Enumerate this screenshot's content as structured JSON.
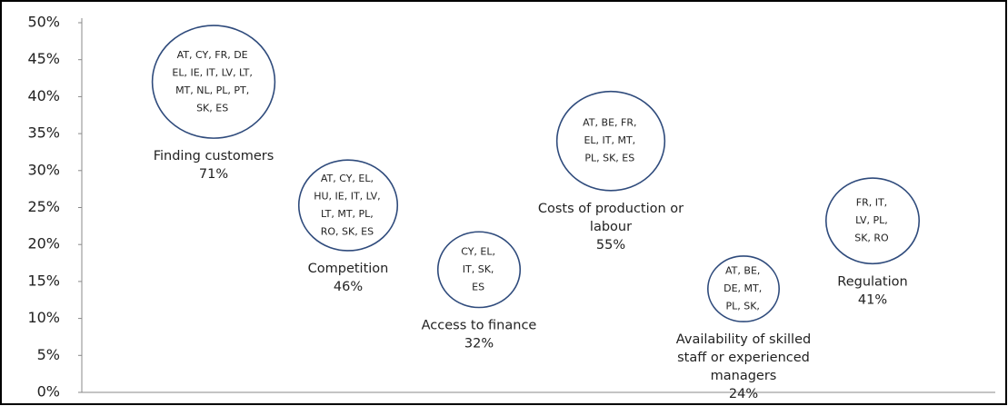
{
  "chart_data": {
    "type": "bubble",
    "categories": [
      "Finding customers",
      "Competition",
      "Access to finance",
      "Costs of production or labour",
      "Availability of skilled staff or experienced managers",
      "Regulation"
    ],
    "values": [
      42,
      25.3,
      16.6,
      34,
      14,
      23.2
    ],
    "sizes": [
      71,
      46,
      32,
      55,
      24,
      41
    ],
    "value_labels": [
      "71%",
      "46%",
      "32%",
      "55%",
      "24%",
      "41%"
    ],
    "countries": [
      [
        "AT, CY, FR, DE",
        "EL, IE, IT,  LV, LT,",
        "MT, NL, PL, PT,",
        "SK, ES"
      ],
      [
        "AT, CY, EL,",
        "HU, IE, IT, LV,",
        "LT, MT, PL,",
        "RO, SK, ES"
      ],
      [
        "CY, EL,",
        "IT, SK,",
        "ES"
      ],
      [
        "AT, BE, FR,",
        "EL, IT, MT,",
        "PL, SK, ES"
      ],
      [
        "AT, BE,",
        "DE, MT,",
        "PL, SK,"
      ],
      [
        "FR, IT,",
        "LV, PL,",
        "SK, RO"
      ]
    ],
    "color": "#2f4b7c",
    "ylim": [
      0,
      50
    ],
    "yticks": [
      {
        "value": 0,
        "label": "0%"
      },
      {
        "value": 5,
        "label": "5%"
      },
      {
        "value": 10,
        "label": "10%"
      },
      {
        "value": 15,
        "label": "15%"
      },
      {
        "value": 20,
        "label": "20%"
      },
      {
        "value": 25,
        "label": "25%"
      },
      {
        "value": 30,
        "label": "30%"
      },
      {
        "value": 35,
        "label": "35%"
      },
      {
        "value": 40,
        "label": "40%"
      },
      {
        "value": 45,
        "label": "45%"
      },
      {
        "value": 50,
        "label": "50%"
      }
    ],
    "grid": false
  }
}
